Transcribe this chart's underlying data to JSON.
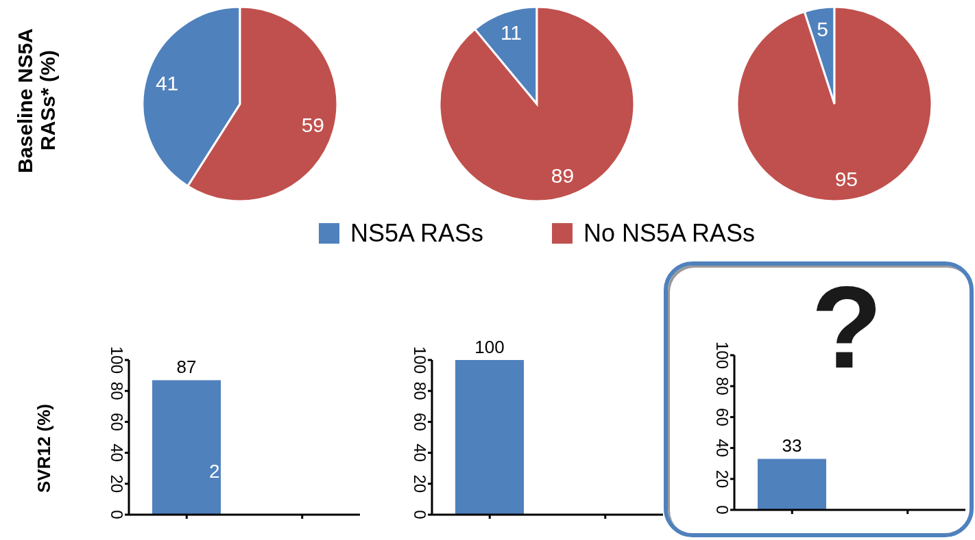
{
  "chart_data": [
    {
      "type": "pie",
      "ylabel": "Baseline NS5A RASs* (%)",
      "categories": [
        null,
        null
      ],
      "values": [
        41,
        59
      ],
      "colors": [
        "#4f81bd",
        "#c0504d"
      ],
      "data_labels": true
    },
    {
      "type": "pie",
      "categories": [
        "NS5A RASs",
        "No NS5A RASs"
      ],
      "values": [
        11,
        89
      ],
      "colors": [
        "#4f81bd",
        "#c0504d"
      ],
      "data_labels": true,
      "legend": "bottom"
    },
    {
      "type": "pie",
      "categories": [
        null,
        null
      ],
      "values": [
        5,
        95
      ],
      "colors": [
        "#4f81bd",
        "#c0504d"
      ],
      "data_labels": true
    },
    {
      "type": "bar",
      "ylabel": "SVR12 (%)",
      "categories": [
        null,
        null
      ],
      "values": [
        87,
        null
      ],
      "color": "#4f81bd",
      "ylim": [
        0,
        100
      ],
      "yticks": [
        0,
        20,
        40,
        60,
        80,
        100
      ],
      "data_labels": true,
      "annotations": [
        "2"
      ]
    },
    {
      "type": "bar",
      "categories": [
        null,
        null
      ],
      "values": [
        100,
        null
      ],
      "color": "#4f81bd",
      "ylim": [
        0,
        100
      ],
      "yticks": [
        0,
        20,
        40,
        60,
        80,
        100
      ],
      "data_labels": true
    },
    {
      "type": "bar",
      "categories": [
        null,
        null
      ],
      "values": [
        33,
        null
      ],
      "color": "#4f81bd",
      "ylim": [
        0,
        100
      ],
      "yticks": [
        0,
        20,
        40,
        60,
        80,
        100
      ],
      "data_labels": true,
      "annotations": [
        "?"
      ]
    }
  ]
}
